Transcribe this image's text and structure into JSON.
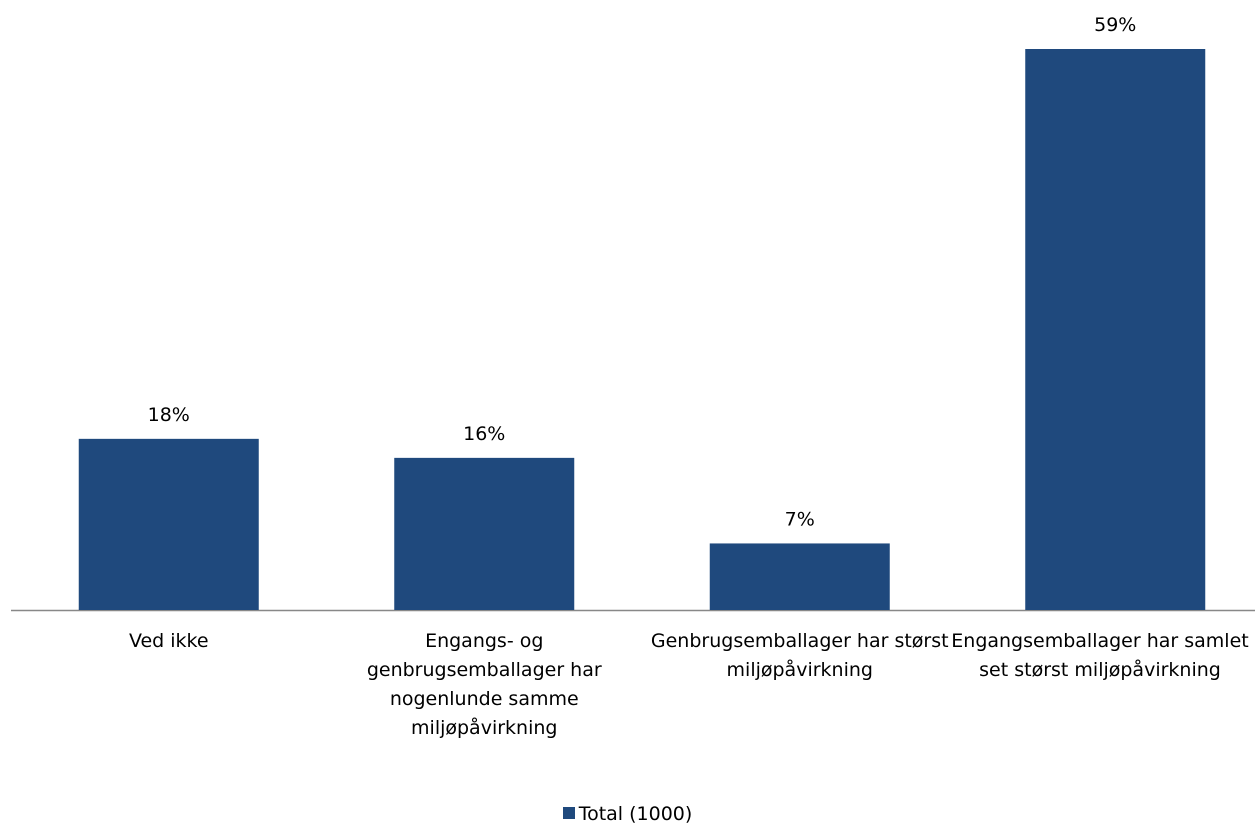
{
  "chart_data": {
    "type": "bar",
    "categories": [
      "Ved ikke",
      "Engangs- og genbrugsemballager har nogenlunde samme miljøpåvirkning",
      "Genbrugsemballager har størst miljøpåvirkning",
      "Engangsemballager har samlet set størst miljøpåvirkning"
    ],
    "series": [
      {
        "name": "Total (1000)",
        "color": "#1f497d",
        "values": [
          18,
          16,
          7,
          59
        ],
        "value_labels": [
          "18%",
          "16%",
          "7%",
          "59%"
        ]
      }
    ]
  }
}
